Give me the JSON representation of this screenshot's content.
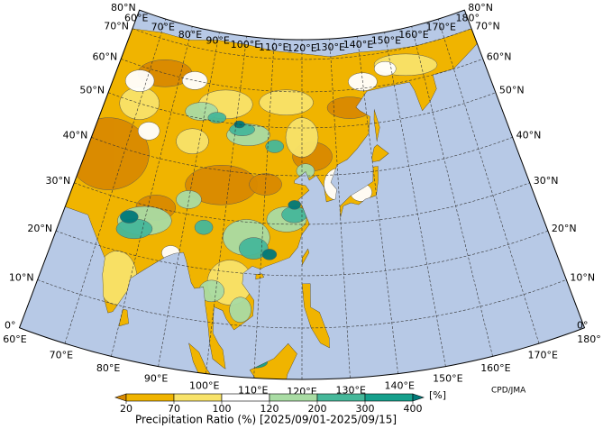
{
  "map": {
    "title": "Precipitation Ratio (%) [2025/09/01-2025/09/15]",
    "unit": "[%]",
    "credit": "CPD/JMA",
    "lon_labels": [
      "60°E",
      "70°E",
      "80°E",
      "90°E",
      "100°E",
      "110°E",
      "120°E",
      "130°E",
      "140°E",
      "150°E",
      "160°E",
      "170°E",
      "180°"
    ],
    "lat_labels": [
      "0°",
      "10°N",
      "20°N",
      "30°N",
      "40°N",
      "50°N",
      "60°N",
      "70°N",
      "80°N"
    ],
    "colorbar": {
      "levels": [
        20,
        70,
        100,
        120,
        200,
        300,
        400
      ],
      "colors": [
        "#d98a00",
        "#f0b400",
        "#f8e36a",
        "#ffffff",
        "#a9dca4",
        "#46b89a",
        "#16a08c",
        "#00797a"
      ]
    }
  }
}
